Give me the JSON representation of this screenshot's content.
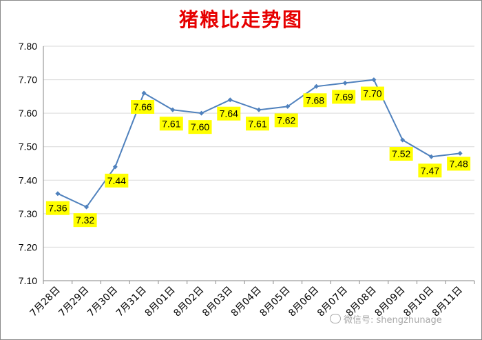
{
  "chart_data": {
    "type": "line",
    "title": "猪粮比走势图",
    "xlabel": "",
    "ylabel": "",
    "ylim": [
      7.1,
      7.8
    ],
    "yticks": [
      "7.10",
      "7.20",
      "7.30",
      "7.40",
      "7.50",
      "7.60",
      "7.70",
      "7.80"
    ],
    "categories": [
      "7月28日",
      "7月29日",
      "7月30日",
      "7月31日",
      "8月01日",
      "8月02日",
      "8月03日",
      "8月04日",
      "8月05日",
      "8月06日",
      "8月07日",
      "8月08日",
      "8月09日",
      "8月10日",
      "8月11日"
    ],
    "values": [
      7.36,
      7.32,
      7.44,
      7.66,
      7.61,
      7.6,
      7.64,
      7.61,
      7.62,
      7.68,
      7.69,
      7.7,
      7.52,
      7.47,
      7.48
    ],
    "data_labels": [
      "7.36",
      "7.32",
      "7.44",
      "7.66",
      "7.61",
      "7.60",
      "7.64",
      "7.61",
      "7.62",
      "7.68",
      "7.69",
      "7.70",
      "7.52",
      "7.47",
      "7.48"
    ],
    "grid": true,
    "legend": "none",
    "colors": {
      "line": "#4f81bd",
      "label_bg": "#ffff00",
      "title": "#e60000",
      "grid": "#d9d9d9"
    }
  },
  "watermark": {
    "icon": "wechat-icon",
    "text": "微信号: shengzhunage"
  }
}
